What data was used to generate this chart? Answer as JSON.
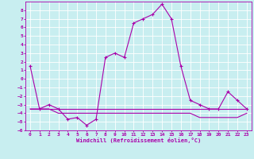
{
  "xlabel": "Windchill (Refroidissement éolien,°C)",
  "x_values": [
    0,
    1,
    2,
    3,
    4,
    5,
    6,
    7,
    8,
    9,
    10,
    11,
    12,
    13,
    14,
    15,
    16,
    17,
    18,
    19,
    20,
    21,
    22,
    23
  ],
  "line1_y": [
    1.5,
    -3.5,
    -3.0,
    -3.5,
    -4.7,
    -4.5,
    -5.4,
    -4.7,
    2.5,
    3.0,
    2.5,
    6.5,
    7.0,
    7.5,
    8.7,
    7.0,
    1.5,
    -2.5,
    -3.0,
    -3.5,
    -3.5,
    -1.5,
    -2.5,
    -3.5
  ],
  "line2_y": [
    -3.5,
    -3.5,
    -3.5,
    -3.5,
    -3.5,
    -3.5,
    -3.5,
    -3.5,
    -3.5,
    -3.5,
    -3.5,
    -3.5,
    -3.5,
    -3.5,
    -3.5,
    -3.5,
    -3.5,
    -3.5,
    -3.5,
    -3.5,
    -3.5,
    -3.5,
    -3.5,
    -3.5
  ],
  "line3_y": [
    -3.5,
    -3.5,
    -3.5,
    -4.0,
    -4.0,
    -4.0,
    -4.0,
    -4.0,
    -4.0,
    -4.0,
    -4.0,
    -4.0,
    -4.0,
    -4.0,
    -4.0,
    -4.0,
    -4.0,
    -4.0,
    -4.5,
    -4.5,
    -4.5,
    -4.5,
    -4.5,
    -4.0
  ],
  "line_color": "#aa00aa",
  "bg_color": "#c8eef0",
  "grid_color": "#ffffff",
  "ylim": [
    -6,
    9
  ],
  "xlim": [
    -0.5,
    23.5
  ],
  "yticks": [
    -6,
    -5,
    -4,
    -3,
    -2,
    -1,
    0,
    1,
    2,
    3,
    4,
    5,
    6,
    7,
    8
  ],
  "xticks": [
    0,
    1,
    2,
    3,
    4,
    5,
    6,
    7,
    8,
    9,
    10,
    11,
    12,
    13,
    14,
    15,
    16,
    17,
    18,
    19,
    20,
    21,
    22,
    23
  ]
}
